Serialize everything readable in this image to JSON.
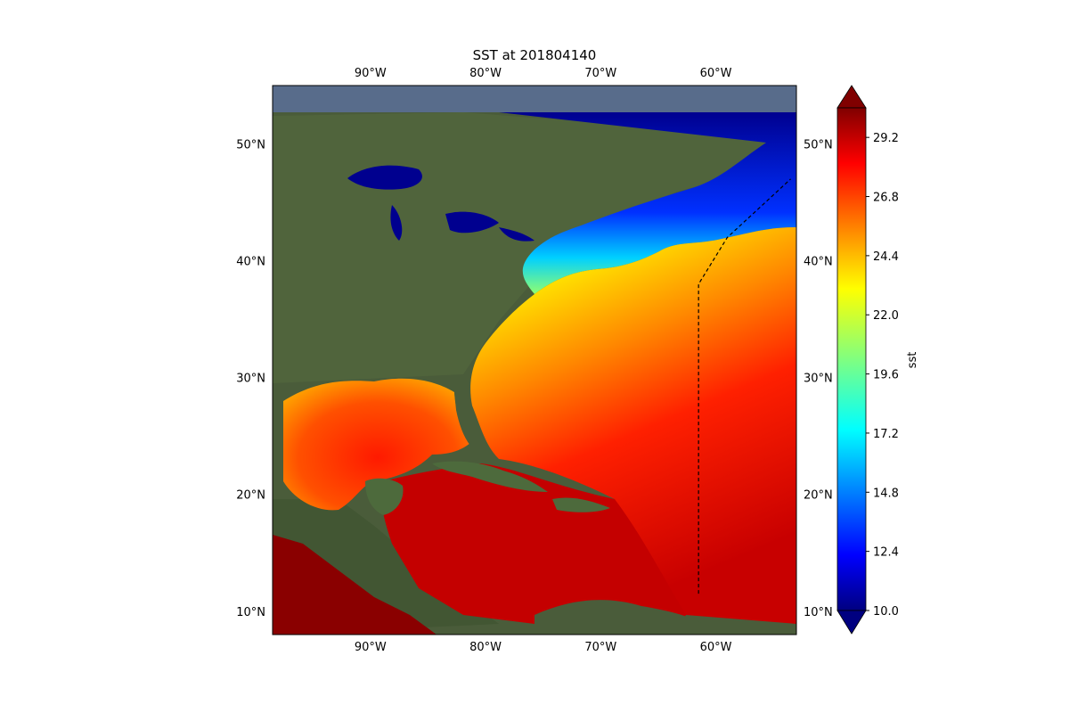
{
  "title": "SST at 201804140",
  "map": {
    "lon_range": [
      -98.5,
      -53
    ],
    "lat_range": [
      8,
      55
    ],
    "lon_ticks": [
      {
        "lon": -90,
        "label": "90°W"
      },
      {
        "lon": -80,
        "label": "80°W"
      },
      {
        "lon": -70,
        "label": "70°W"
      },
      {
        "lon": -60,
        "label": "60°W"
      }
    ],
    "lat_ticks": [
      {
        "lat": 10,
        "label": "10°N"
      },
      {
        "lat": 20,
        "label": "20°N"
      },
      {
        "lat": 30,
        "label": "30°N"
      },
      {
        "lat": 40,
        "label": "40°N"
      },
      {
        "lat": 50,
        "label": "50°N"
      }
    ],
    "background": "satellite imagery (land and ocean)",
    "boundary_line": {
      "style": "dashed",
      "color": "#000000",
      "points": [
        [
          -61.5,
          11.5
        ],
        [
          -61.5,
          38
        ],
        [
          -59,
          42
        ],
        [
          -53.5,
          47
        ]
      ]
    }
  },
  "colorbar": {
    "label": "sst",
    "min": 10.0,
    "max": 30.4,
    "extend": "both",
    "colormap": "jet",
    "ticks": [
      {
        "value": 10.0,
        "label": "10.0"
      },
      {
        "value": 12.4,
        "label": "12.4"
      },
      {
        "value": 14.8,
        "label": "14.8"
      },
      {
        "value": 17.2,
        "label": "17.2"
      },
      {
        "value": 19.6,
        "label": "19.6"
      },
      {
        "value": 22.0,
        "label": "22.0"
      },
      {
        "value": 24.4,
        "label": "24.4"
      },
      {
        "value": 26.8,
        "label": "26.8"
      },
      {
        "value": 29.2,
        "label": "29.2"
      }
    ]
  },
  "colors": {
    "land": "#4a5c3a",
    "deep_water": "#00008f",
    "jet": [
      "#000080",
      "#0000ff",
      "#0080ff",
      "#00ffff",
      "#80ff80",
      "#ffff00",
      "#ff8000",
      "#ff0000",
      "#800000"
    ]
  }
}
